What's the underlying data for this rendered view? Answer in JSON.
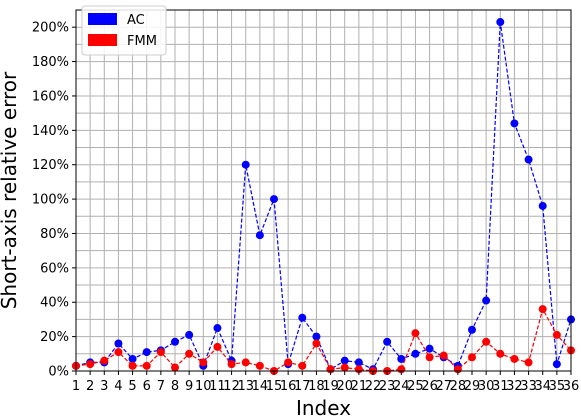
{
  "chart_data": {
    "type": "line",
    "xlabel": "Index",
    "ylabel": "Short-axis relative error",
    "x": [
      1,
      2,
      3,
      4,
      5,
      6,
      7,
      8,
      9,
      10,
      11,
      12,
      13,
      14,
      15,
      16,
      17,
      18,
      19,
      20,
      21,
      22,
      23,
      24,
      25,
      26,
      27,
      28,
      29,
      30,
      31,
      32,
      33,
      34,
      35,
      36
    ],
    "xlim": [
      1,
      36
    ],
    "ylim": [
      0,
      210
    ],
    "y_ticks": [
      0,
      20,
      40,
      60,
      80,
      100,
      120,
      140,
      160,
      180,
      200
    ],
    "y_tick_suffix": "%",
    "grid": true,
    "legend_position": "top-left",
    "series": [
      {
        "name": "AC",
        "color": "#0000ff",
        "values": [
          3,
          5,
          5,
          16,
          7,
          11,
          12,
          17,
          21,
          3,
          25,
          6,
          120,
          79,
          100,
          4,
          31,
          20,
          1,
          6,
          5,
          1,
          17,
          7,
          10,
          13,
          8,
          3,
          24,
          41,
          203,
          144,
          123,
          96,
          4,
          30
        ]
      },
      {
        "name": "FMM",
        "color": "#ff0000",
        "values": [
          3,
          4,
          6,
          11,
          3,
          3,
          11,
          2,
          10,
          5,
          14,
          4,
          5,
          3,
          0,
          5,
          3,
          16,
          1,
          2,
          1,
          0,
          0,
          1,
          22,
          8,
          9,
          1,
          8,
          17,
          10,
          7,
          5,
          36,
          21,
          12
        ]
      }
    ]
  }
}
